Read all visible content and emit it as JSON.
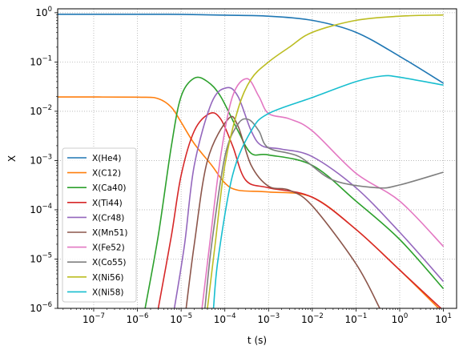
{
  "chart_data": {
    "type": "line",
    "xlabel": "t (s)",
    "ylabel": "X",
    "xscale": "log",
    "yscale": "log",
    "xlim": [
      1.5e-08,
      20
    ],
    "ylim": [
      1e-06,
      1.2
    ],
    "grid": true,
    "legend_position": "lower-left",
    "x_ticks": [
      {
        "value": 1e-07,
        "base": "10",
        "exp": "−7"
      },
      {
        "value": 1e-06,
        "base": "10",
        "exp": "−6"
      },
      {
        "value": 1e-05,
        "base": "10",
        "exp": "−5"
      },
      {
        "value": 0.0001,
        "base": "10",
        "exp": "−4"
      },
      {
        "value": 0.001,
        "base": "10",
        "exp": "−3"
      },
      {
        "value": 0.01,
        "base": "10",
        "exp": "−2"
      },
      {
        "value": 0.1,
        "base": "10",
        "exp": "−1"
      },
      {
        "value": 1,
        "base": "10",
        "exp": "0"
      },
      {
        "value": 10,
        "base": "10",
        "exp": "1"
      }
    ],
    "y_ticks": [
      {
        "value": 1e-06,
        "base": "10",
        "exp": "−6"
      },
      {
        "value": 1e-05,
        "base": "10",
        "exp": "−5"
      },
      {
        "value": 0.0001,
        "base": "10",
        "exp": "−4"
      },
      {
        "value": 0.001,
        "base": "10",
        "exp": "−3"
      },
      {
        "value": 0.01,
        "base": "10",
        "exp": "−2"
      },
      {
        "value": 0.1,
        "base": "10",
        "exp": "−1"
      },
      {
        "value": 1,
        "base": "10",
        "exp": "0"
      }
    ],
    "series": [
      {
        "name": "X(He4)",
        "color": "#1f77b4",
        "points": [
          [
            1.5e-08,
            0.93
          ],
          [
            1e-06,
            0.93
          ],
          [
            1e-05,
            0.925
          ],
          [
            0.0001,
            0.89
          ],
          [
            0.001,
            0.85
          ],
          [
            0.01,
            0.7
          ],
          [
            0.1,
            0.4
          ],
          [
            1,
            0.13
          ],
          [
            10,
            0.037
          ]
        ]
      },
      {
        "name": "X(C12)",
        "color": "#ff7f0e",
        "points": [
          [
            1.5e-08,
            0.0195
          ],
          [
            1e-06,
            0.0193
          ],
          [
            3e-06,
            0.018
          ],
          [
            6e-06,
            0.012
          ],
          [
            1e-05,
            0.006
          ],
          [
            2e-05,
            0.0022
          ],
          [
            5e-05,
            0.0008
          ],
          [
            0.0001,
            0.00035
          ],
          [
            0.0002,
            0.00025
          ],
          [
            0.001,
            0.00023
          ],
          [
            0.01,
            0.00018
          ],
          [
            0.1,
            4e-05
          ],
          [
            1,
            6e-06
          ],
          [
            10,
            8e-07
          ]
        ]
      },
      {
        "name": "X(Ca40)",
        "color": "#2ca02c",
        "points": [
          [
            1.5e-06,
            1e-06
          ],
          [
            3e-06,
            3e-05
          ],
          [
            6e-06,
            0.002
          ],
          [
            1e-05,
            0.02
          ],
          [
            2e-05,
            0.047
          ],
          [
            4e-05,
            0.04
          ],
          [
            8e-05,
            0.02
          ],
          [
            0.0002,
            0.004
          ],
          [
            0.0004,
            0.0014
          ],
          [
            0.001,
            0.0013
          ],
          [
            0.01,
            0.0008
          ],
          [
            0.1,
            0.00015
          ],
          [
            1,
            2.5e-05
          ],
          [
            10,
            2.5e-06
          ]
        ]
      },
      {
        "name": "X(Ti44)",
        "color": "#d62728",
        "points": [
          [
            3e-06,
            1e-06
          ],
          [
            6e-06,
            3e-05
          ],
          [
            1e-05,
            0.0005
          ],
          [
            2e-05,
            0.004
          ],
          [
            4.5e-05,
            0.009
          ],
          [
            8e-05,
            0.007
          ],
          [
            0.00015,
            0.002
          ],
          [
            0.0003,
            0.0004
          ],
          [
            0.001,
            0.00028
          ],
          [
            0.01,
            0.00018
          ],
          [
            0.1,
            4e-05
          ],
          [
            1,
            6e-06
          ],
          [
            10,
            9e-07
          ]
        ]
      },
      {
        "name": "X(Cr48)",
        "color": "#9467bd",
        "points": [
          [
            7e-06,
            1e-06
          ],
          [
            1.2e-05,
            2e-05
          ],
          [
            2e-05,
            0.0008
          ],
          [
            5e-05,
            0.015
          ],
          [
            0.00011,
            0.03
          ],
          [
            0.0002,
            0.02
          ],
          [
            0.0004,
            0.004
          ],
          [
            0.0007,
            0.002
          ],
          [
            0.002,
            0.0017
          ],
          [
            0.01,
            0.0012
          ],
          [
            0.1,
            0.00028
          ],
          [
            1,
            3.5e-05
          ],
          [
            10,
            3.5e-06
          ]
        ]
      },
      {
        "name": "X(Mn51)",
        "color": "#8c564b",
        "points": [
          [
            1.3e-05,
            1e-06
          ],
          [
            2e-05,
            2e-05
          ],
          [
            4e-05,
            0.001
          ],
          [
            0.00012,
            0.007
          ],
          [
            0.0002,
            0.005
          ],
          [
            0.0004,
            0.0008
          ],
          [
            0.001,
            0.0003
          ],
          [
            0.003,
            0.00025
          ],
          [
            0.01,
            0.00012
          ],
          [
            0.1,
            8e-06
          ],
          [
            0.35,
            1e-06
          ]
        ]
      },
      {
        "name": "X(Fe52)",
        "color": "#e377c2",
        "points": [
          [
            3e-05,
            1e-06
          ],
          [
            4.5e-05,
            2e-05
          ],
          [
            8e-05,
            0.0012
          ],
          [
            0.00015,
            0.02
          ],
          [
            0.00032,
            0.046
          ],
          [
            0.0006,
            0.02
          ],
          [
            0.001,
            0.009
          ],
          [
            0.003,
            0.007
          ],
          [
            0.01,
            0.004
          ],
          [
            0.1,
            0.00055
          ],
          [
            1,
            0.00015
          ],
          [
            10,
            1.8e-05
          ]
        ]
      },
      {
        "name": "X(Co55)",
        "color": "#7f7f7f",
        "points": [
          [
            3.5e-05,
            1e-06
          ],
          [
            5e-05,
            2e-05
          ],
          [
            0.0001,
            0.0012
          ],
          [
            0.0002,
            0.0055
          ],
          [
            0.00035,
            0.0068
          ],
          [
            0.0006,
            0.004
          ],
          [
            0.001,
            0.0018
          ],
          [
            0.005,
            0.0012
          ],
          [
            0.03,
            0.0004
          ],
          [
            0.3,
            0.00028
          ],
          [
            1,
            0.00032
          ],
          [
            10,
            0.00058
          ]
        ]
      },
      {
        "name": "X(Ni56)",
        "color": "#bcbd22",
        "points": [
          [
            4e-05,
            1e-06
          ],
          [
            6e-05,
            2e-05
          ],
          [
            0.0001,
            0.0008
          ],
          [
            0.0002,
            0.011
          ],
          [
            0.0004,
            0.045
          ],
          [
            0.001,
            0.1
          ],
          [
            0.003,
            0.2
          ],
          [
            0.01,
            0.4
          ],
          [
            0.1,
            0.7
          ],
          [
            1,
            0.85
          ],
          [
            10,
            0.9
          ]
        ]
      },
      {
        "name": "X(Ni58)",
        "color": "#17becf",
        "points": [
          [
            5.5e-05,
            1e-06
          ],
          [
            7e-05,
            1e-05
          ],
          [
            0.00015,
            0.0005
          ],
          [
            0.0004,
            0.004
          ],
          [
            0.001,
            0.009
          ],
          [
            0.01,
            0.019
          ],
          [
            0.1,
            0.04
          ],
          [
            0.4,
            0.052
          ],
          [
            1,
            0.049
          ],
          [
            10,
            0.034
          ]
        ]
      }
    ]
  }
}
